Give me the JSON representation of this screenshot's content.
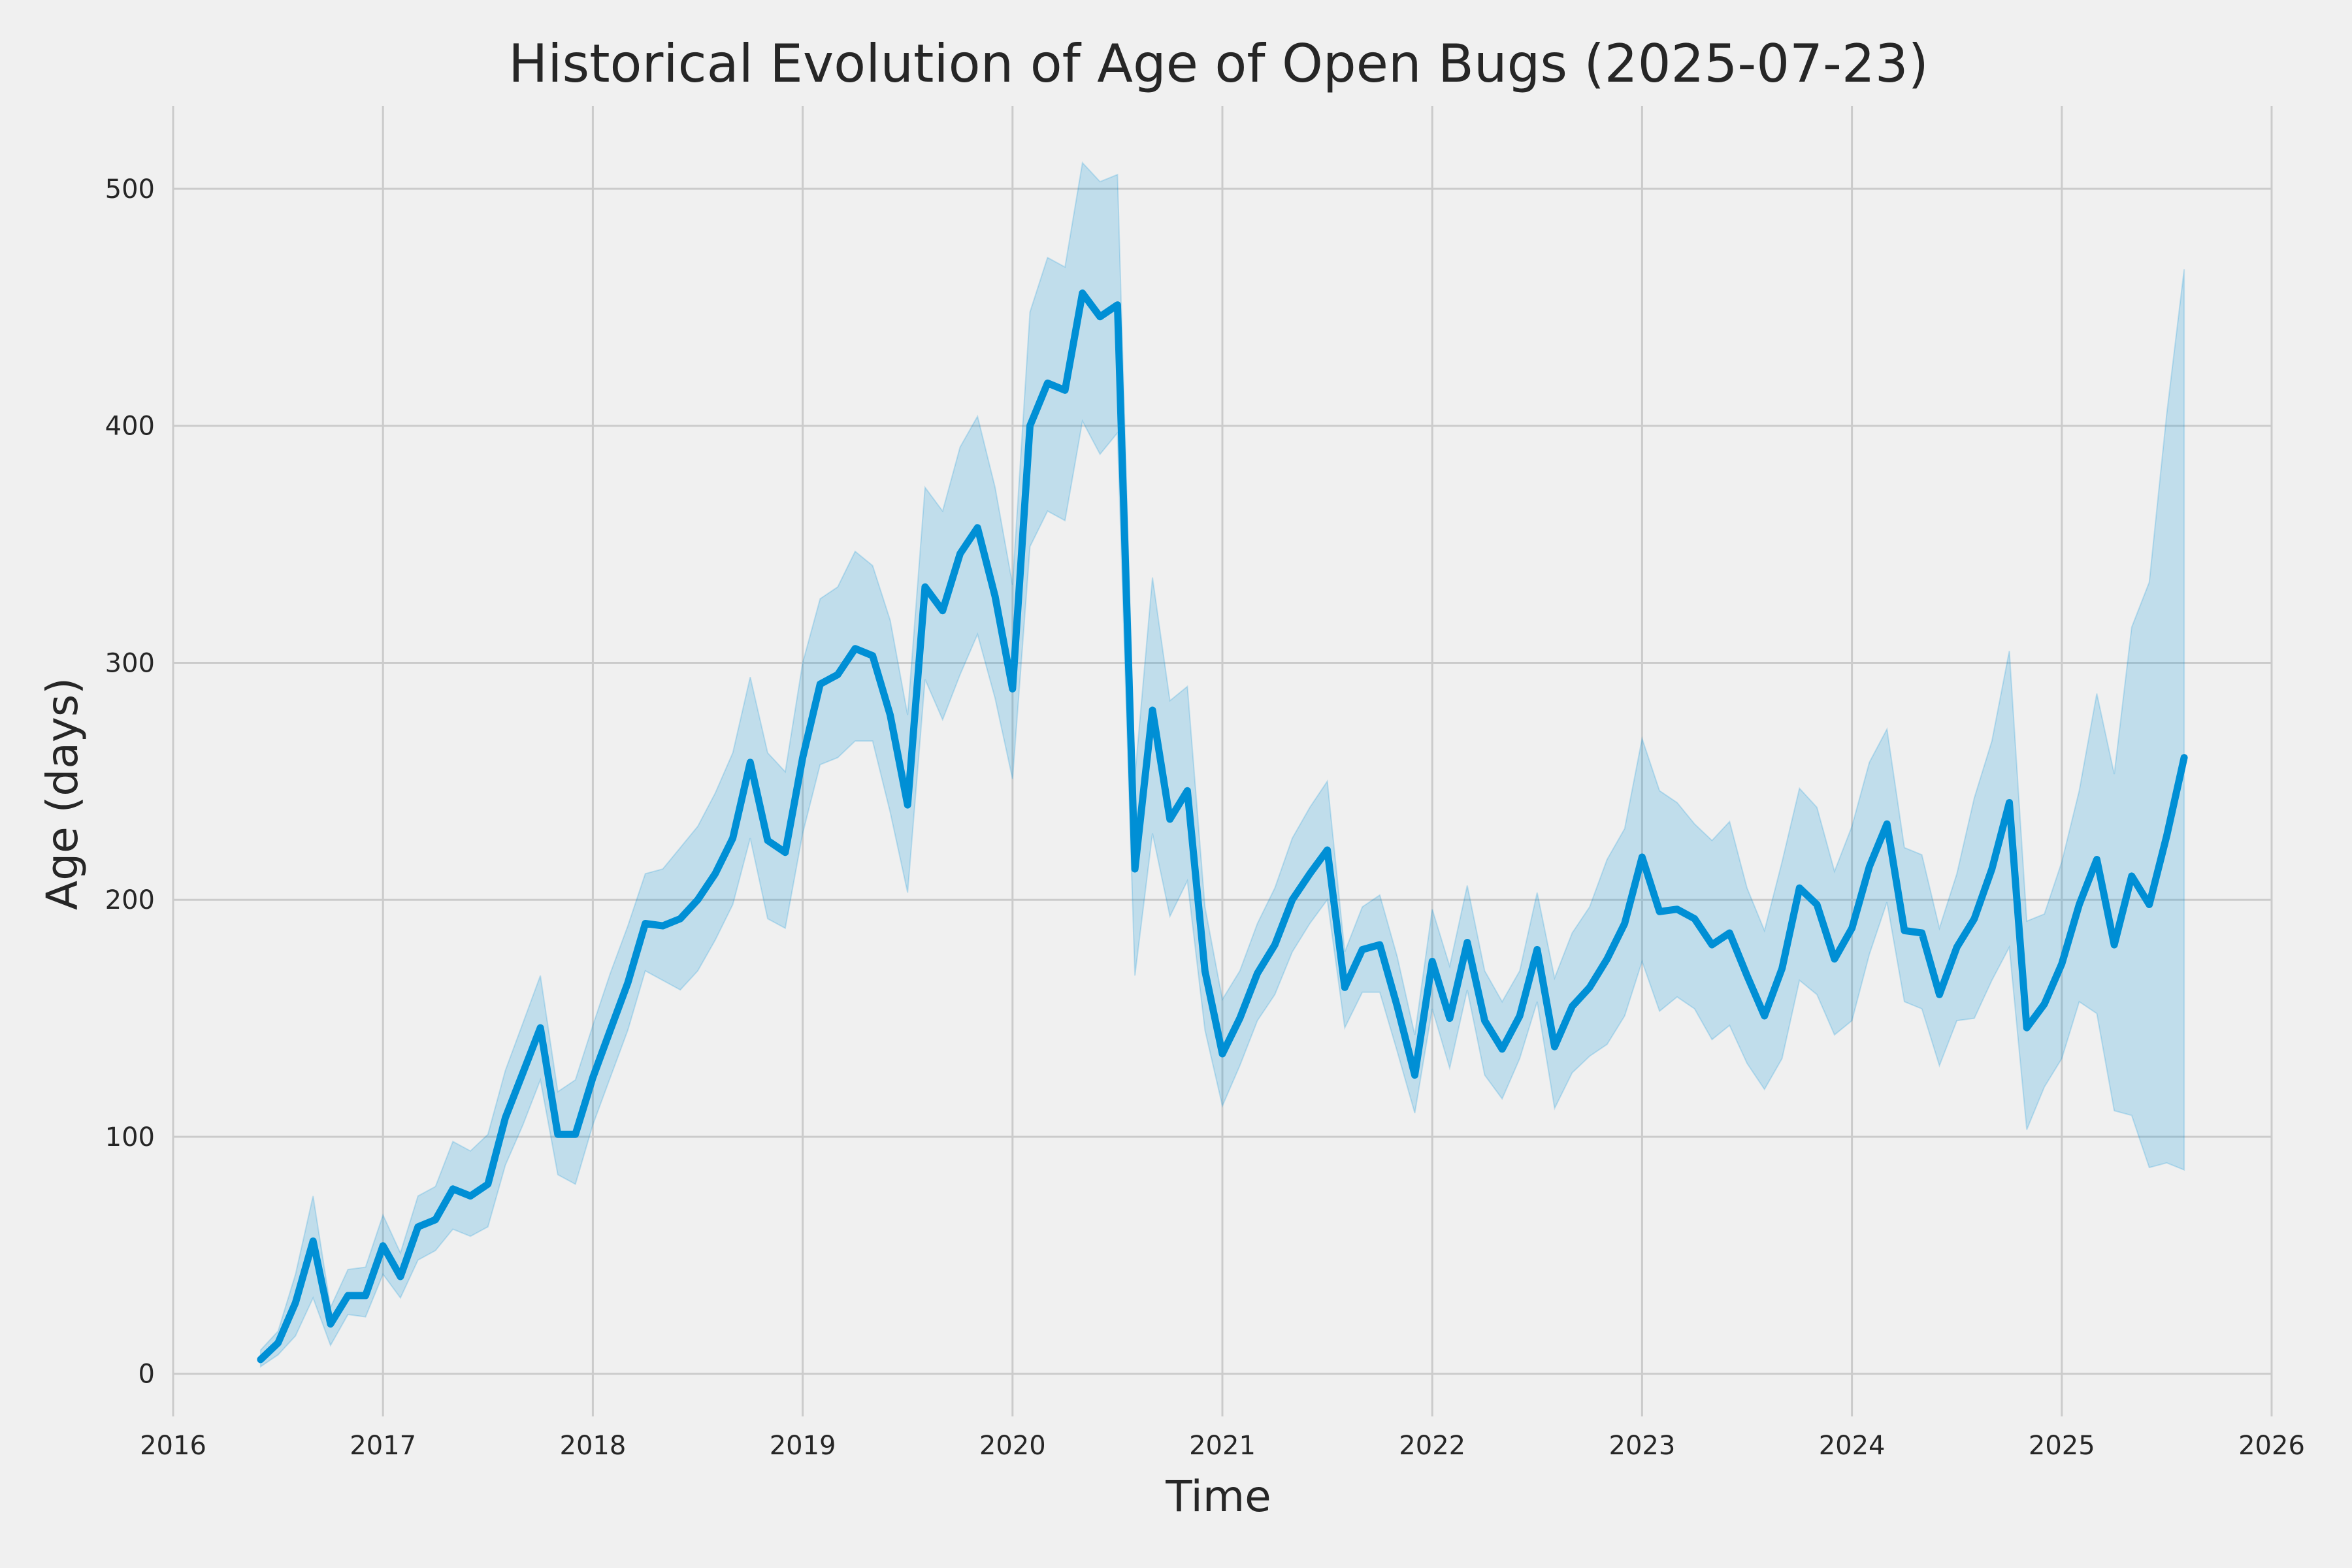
{
  "chart_data": {
    "type": "line",
    "title": "Historical Evolution of Age of Open Bugs (2025-07-23)",
    "xlabel": "Time",
    "ylabel": "Age (days)",
    "xlim": [
      2016,
      2026
    ],
    "ylim": [
      -18,
      535
    ],
    "x_ticks": [
      "2016",
      "2017",
      "2018",
      "2019",
      "2020",
      "2021",
      "2022",
      "2023",
      "2024",
      "2025",
      "2026"
    ],
    "y_ticks": [
      "0",
      "100",
      "200",
      "300",
      "400",
      "500"
    ],
    "grid": true,
    "colors": {
      "line": "#008fd5",
      "band": "#008fd5",
      "grid": "#cbcbcb",
      "background": "#f0f0f0"
    },
    "series": [
      {
        "x": [
          2016.417,
          2016.5,
          2016.583,
          2016.667,
          2016.75,
          2016.833,
          2016.917,
          2017.0,
          2017.083,
          2017.167,
          2017.25,
          2017.333,
          2017.417,
          2017.5,
          2017.583,
          2017.667,
          2017.75,
          2017.833,
          2017.917,
          2018.0,
          2018.083,
          2018.167,
          2018.25,
          2018.333,
          2018.417,
          2018.5,
          2018.583,
          2018.667,
          2018.75,
          2018.833,
          2018.917,
          2019.0,
          2019.083,
          2019.167,
          2019.25,
          2019.333,
          2019.417,
          2019.5,
          2019.583,
          2019.667,
          2019.75,
          2019.833,
          2019.917,
          2020.0,
          2020.083,
          2020.167,
          2020.25,
          2020.333,
          2020.417,
          2020.5,
          2020.583,
          2020.667,
          2020.75,
          2020.833,
          2020.917,
          2021.0,
          2021.083,
          2021.167,
          2021.25,
          2021.333,
          2021.417,
          2021.5,
          2021.583,
          2021.667,
          2021.75,
          2021.833,
          2021.917,
          2022.0,
          2022.083,
          2022.167,
          2022.25,
          2022.333,
          2022.417,
          2022.5,
          2022.583,
          2022.667,
          2022.75,
          2022.833,
          2022.917,
          2023.0,
          2023.083,
          2023.167,
          2023.25,
          2023.333,
          2023.417,
          2023.5,
          2023.583,
          2023.667,
          2023.75,
          2023.833,
          2023.917,
          2024.0,
          2024.083,
          2024.167,
          2024.25,
          2024.333,
          2024.417,
          2024.5,
          2024.583,
          2024.667,
          2024.75,
          2024.833,
          2024.917,
          2025.0,
          2025.083,
          2025.167,
          2025.25,
          2025.333,
          2025.417,
          2025.5,
          2025.583
        ],
        "y": [
          6,
          13,
          30,
          56,
          21,
          33,
          33,
          54,
          41,
          62,
          65,
          78,
          75,
          80,
          108,
          127,
          146,
          101,
          101,
          125,
          145,
          165,
          190,
          189,
          192,
          200,
          211,
          226,
          258,
          225,
          220,
          260,
          291,
          295,
          306,
          303,
          278,
          240,
          332,
          322,
          346,
          357,
          328,
          289,
          400,
          418,
          415,
          456,
          446,
          451,
          213,
          280,
          234,
          246,
          170,
          135,
          150,
          169,
          181,
          200,
          211,
          221,
          163,
          179,
          181,
          155,
          126,
          174,
          150,
          182,
          149,
          137,
          151,
          179,
          138,
          155,
          163,
          175,
          190,
          218,
          195,
          196,
          192,
          181,
          186,
          168,
          151,
          171,
          205,
          198,
          175,
          188,
          214,
          232,
          187,
          186,
          160,
          180,
          192,
          213,
          241,
          146,
          156,
          173,
          198,
          217,
          181,
          210,
          198,
          227,
          260
        ],
        "lower": [
          3,
          8,
          16,
          32,
          12,
          25,
          24,
          42,
          32,
          48,
          52,
          61,
          58,
          62,
          88,
          105,
          124,
          84,
          80,
          105,
          125,
          145,
          170,
          166,
          162,
          170,
          183,
          198,
          226,
          192,
          188,
          228,
          257,
          260,
          267,
          267,
          237,
          203,
          293,
          276,
          295,
          312,
          285,
          251,
          349,
          364,
          360,
          402,
          388,
          397,
          168,
          228,
          193,
          208,
          145,
          113,
          130,
          149,
          160,
          178,
          190,
          200,
          146,
          161,
          161,
          136,
          110,
          154,
          129,
          162,
          126,
          116,
          133,
          157,
          112,
          127,
          134,
          139,
          151,
          174,
          153,
          159,
          154,
          141,
          147,
          131,
          120,
          133,
          166,
          160,
          143,
          149,
          177,
          199,
          157,
          154,
          130,
          149,
          150,
          166,
          180,
          103,
          121,
          133,
          157,
          152,
          111,
          109,
          87,
          89,
          86
        ],
        "upper": [
          10,
          18,
          42,
          75,
          28,
          44,
          45,
          67,
          51,
          75,
          79,
          98,
          94,
          101,
          128,
          148,
          168,
          119,
          124,
          147,
          169,
          189,
          211,
          213,
          222,
          231,
          245,
          262,
          294,
          262,
          254,
          300,
          327,
          332,
          347,
          341,
          318,
          278,
          374,
          364,
          391,
          404,
          374,
          333,
          448,
          471,
          467,
          511,
          503,
          506,
          252,
          336,
          284,
          290,
          197,
          158,
          170,
          190,
          205,
          226,
          239,
          250,
          178,
          197,
          202,
          176,
          143,
          196,
          172,
          206,
          170,
          157,
          170,
          203,
          167,
          186,
          197,
          217,
          230,
          268,
          246,
          241,
          232,
          225,
          233,
          205,
          187,
          216,
          247,
          239,
          212,
          231,
          258,
          272,
          222,
          219,
          188,
          211,
          243,
          267,
          305,
          191,
          194,
          216,
          246,
          287,
          253,
          315,
          334,
          405,
          466
        ]
      }
    ]
  }
}
